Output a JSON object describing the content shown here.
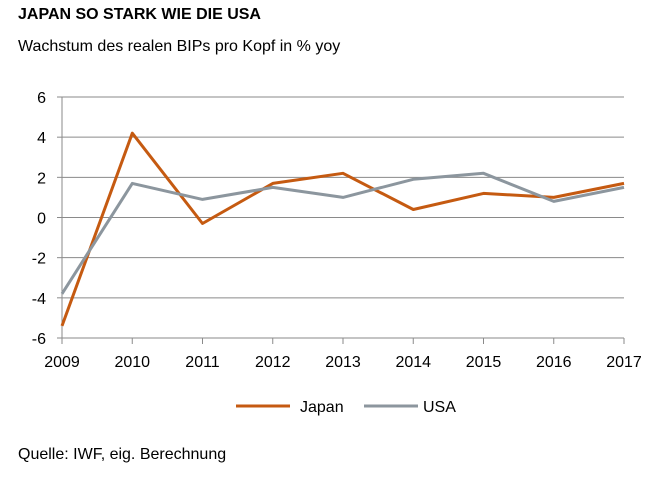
{
  "title": "JAPAN SO STARK WIE DIE USA",
  "subtitle": "Wachstum des realen BIPs pro Kopf in % yoy",
  "source": "Quelle: IWF, eig. Berechnung",
  "chart_data": {
    "type": "line",
    "title": "JAPAN SO STARK WIE DIE USA",
    "xlabel": "",
    "ylabel": "Wachstum des realen BIPs pro Kopf in % yoy",
    "categories": [
      "2009",
      "2010",
      "2011",
      "2012",
      "2013",
      "2014",
      "2015",
      "2016",
      "2017"
    ],
    "ylim": [
      -6,
      6
    ],
    "yticks": [
      -6,
      -4,
      -2,
      0,
      2,
      4,
      6
    ],
    "ytick_labels": [
      "-6",
      "-4",
      "-2",
      "0",
      "2",
      "4",
      "6"
    ],
    "grid": true,
    "legend": "bottom",
    "series": [
      {
        "name": "Japan",
        "color": "#C55A11",
        "values": [
          -5.4,
          4.2,
          -0.3,
          1.7,
          2.2,
          0.4,
          1.2,
          1.0,
          1.7
        ]
      },
      {
        "name": "USA",
        "color": "#8C969E",
        "values": [
          -3.8,
          1.7,
          0.9,
          1.5,
          1.0,
          1.9,
          2.2,
          0.8,
          1.5
        ]
      }
    ]
  }
}
